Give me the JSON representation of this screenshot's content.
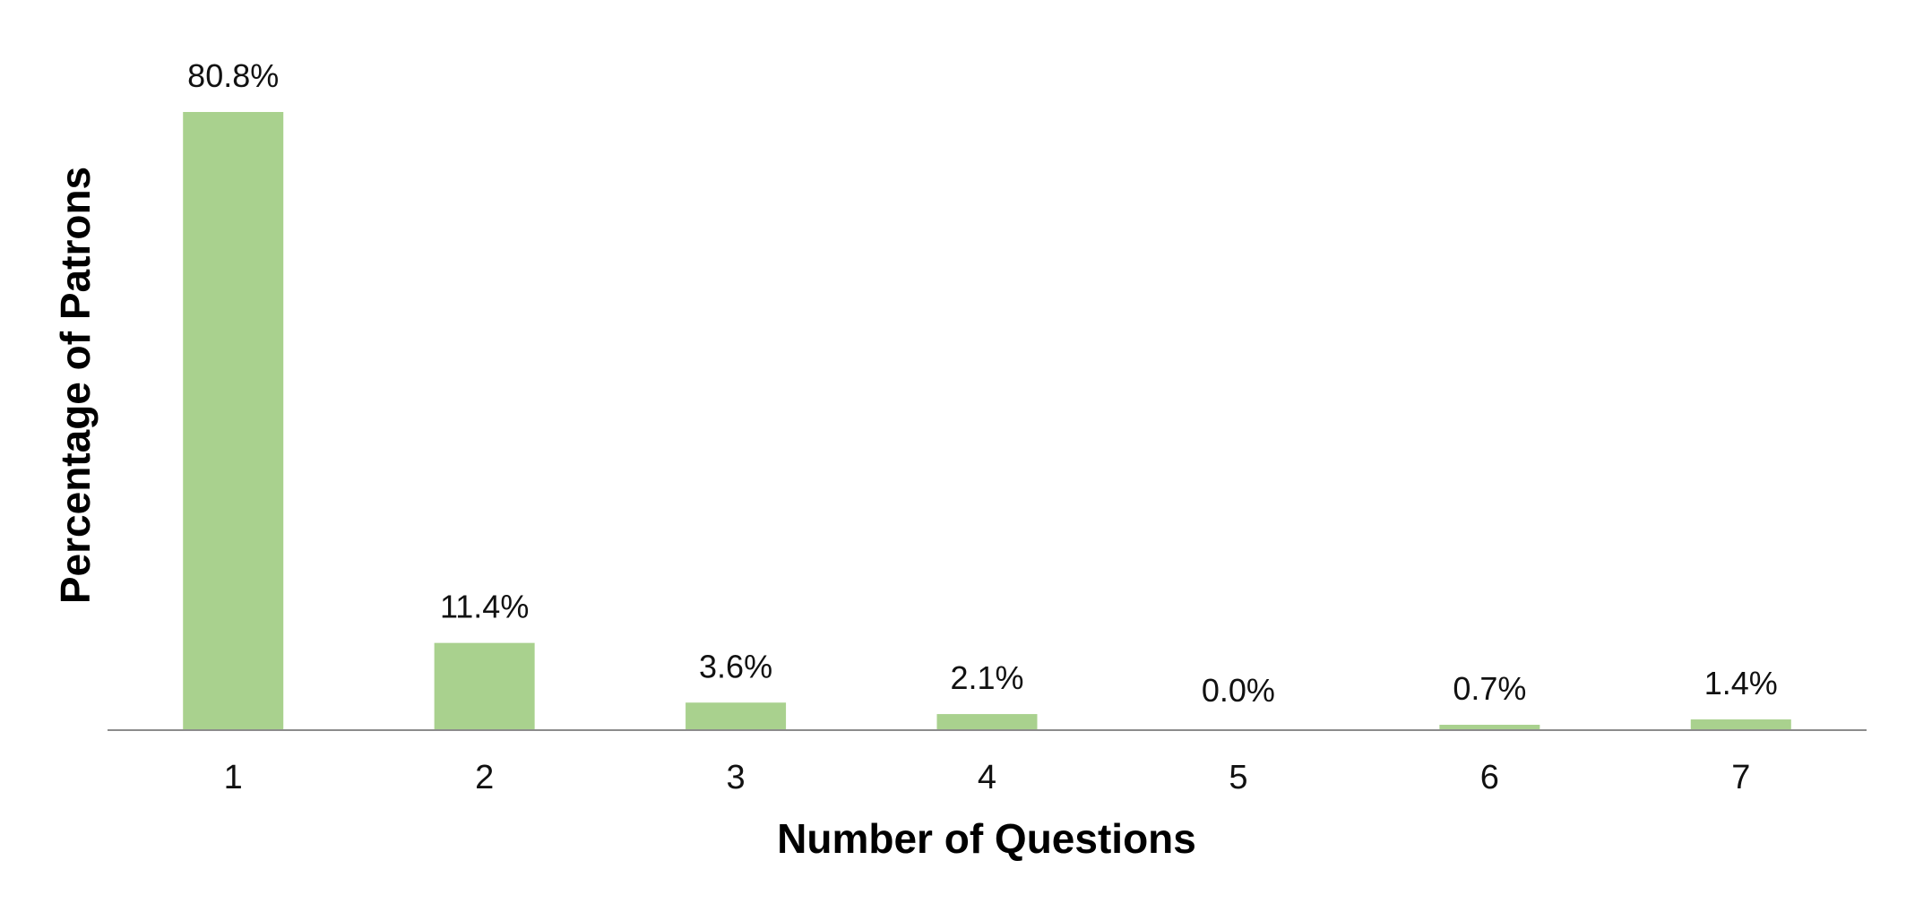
{
  "chart_data": {
    "type": "bar",
    "title": "",
    "xlabel": "Number of Questions",
    "ylabel": "Percentage of Patrons",
    "categories": [
      "1",
      "2",
      "3",
      "4",
      "5",
      "6",
      "7"
    ],
    "values": [
      80.8,
      11.4,
      3.6,
      2.1,
      0.0,
      0.7,
      1.4
    ],
    "data_labels": [
      "80.8%",
      "11.4%",
      "3.6%",
      "2.1%",
      "0.0%",
      "0.7%",
      "1.4%"
    ],
    "ylim": [
      0,
      80.8
    ],
    "grid": false,
    "legend": "none",
    "colors": {
      "bar": "#a9d18e",
      "axis": "#8c8c8c"
    }
  }
}
